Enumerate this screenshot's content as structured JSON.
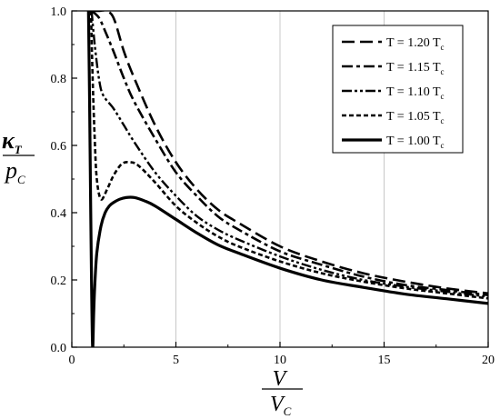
{
  "chart_data": {
    "type": "line",
    "xlim": [
      0,
      20
    ],
    "ylim": [
      0.0,
      1.0
    ],
    "x_ticks": [
      0,
      5,
      10,
      15,
      20
    ],
    "x_tick_labels": [
      "0",
      "5",
      "10",
      "15",
      "20"
    ],
    "y_ticks": [
      0.0,
      0.2,
      0.4,
      0.6,
      0.8,
      1.0
    ],
    "y_tick_labels": [
      "0.0",
      "0.2",
      "0.4",
      "0.6",
      "0.8",
      "1.0"
    ],
    "grid": "vertical",
    "legend_position": "top-right",
    "xlabel": {
      "numerator": "V",
      "denominator": "V",
      "denominator_subscript": "C"
    },
    "ylabel": {
      "numerator": "κ",
      "numerator_subscript": "T",
      "denominator": "p",
      "denominator_subscript": "C"
    },
    "series": [
      {
        "name": "T = 1.20 T",
        "name_subscript": "c",
        "dash": "dash",
        "x": [
          0.95,
          1.3,
          1.6,
          2,
          2.5,
          3,
          4,
          5,
          6,
          7,
          8,
          10,
          12,
          14,
          16,
          18,
          20
        ],
        "y": [
          1.0,
          1.0,
          1.0,
          0.98,
          0.88,
          0.8,
          0.66,
          0.55,
          0.47,
          0.41,
          0.37,
          0.3,
          0.255,
          0.22,
          0.195,
          0.175,
          0.16
        ]
      },
      {
        "name": "T = 1.15 T",
        "name_subscript": "c",
        "dash": "dash-dot",
        "x": [
          0.95,
          1.3,
          1.6,
          2,
          2.5,
          3,
          4,
          5,
          6,
          7,
          8,
          10,
          12,
          14,
          16,
          18,
          20
        ],
        "y": [
          1.0,
          0.98,
          0.94,
          0.88,
          0.8,
          0.73,
          0.62,
          0.52,
          0.45,
          0.39,
          0.35,
          0.285,
          0.245,
          0.21,
          0.185,
          0.17,
          0.155
        ]
      },
      {
        "name": "T = 1.10 T",
        "name_subscript": "c",
        "dash": "dash-dot-dot",
        "x": [
          0.95,
          1.1,
          1.3,
          1.5,
          2,
          2.5,
          3,
          4,
          5,
          6,
          7,
          8,
          10,
          12,
          14,
          16,
          18,
          20
        ],
        "y": [
          1.0,
          0.9,
          0.8,
          0.75,
          0.71,
          0.66,
          0.61,
          0.52,
          0.45,
          0.39,
          0.35,
          0.32,
          0.27,
          0.23,
          0.2,
          0.18,
          0.165,
          0.15
        ]
      },
      {
        "name": "T = 1.05 T",
        "name_subscript": "c",
        "dash": "short-dash",
        "x": [
          0.92,
          1.0,
          1.1,
          1.2,
          1.4,
          1.7,
          2.0,
          2.4,
          2.8,
          3.2,
          4,
          5,
          6,
          7,
          8,
          10,
          12,
          14,
          16,
          18,
          20
        ],
        "y": [
          1.0,
          0.8,
          0.62,
          0.5,
          0.44,
          0.47,
          0.51,
          0.545,
          0.55,
          0.54,
          0.49,
          0.42,
          0.37,
          0.33,
          0.3,
          0.255,
          0.22,
          0.195,
          0.175,
          0.16,
          0.145
        ]
      },
      {
        "name": "T = 1.00 T",
        "name_subscript": "c",
        "dash": "solid",
        "x": [
          0.8,
          0.85,
          0.9,
          0.95,
          1.0,
          1.05,
          1.1,
          1.2,
          1.4,
          1.6,
          1.8,
          2.0,
          2.3,
          2.6,
          3.0,
          3.5,
          4,
          5,
          6,
          7,
          8,
          10,
          12,
          14,
          16,
          18,
          20
        ],
        "y": [
          1.0,
          0.75,
          0.45,
          0.18,
          0.0,
          0.1,
          0.18,
          0.28,
          0.36,
          0.4,
          0.42,
          0.43,
          0.44,
          0.445,
          0.445,
          0.435,
          0.42,
          0.38,
          0.34,
          0.305,
          0.28,
          0.235,
          0.2,
          0.178,
          0.158,
          0.144,
          0.13
        ]
      }
    ]
  }
}
